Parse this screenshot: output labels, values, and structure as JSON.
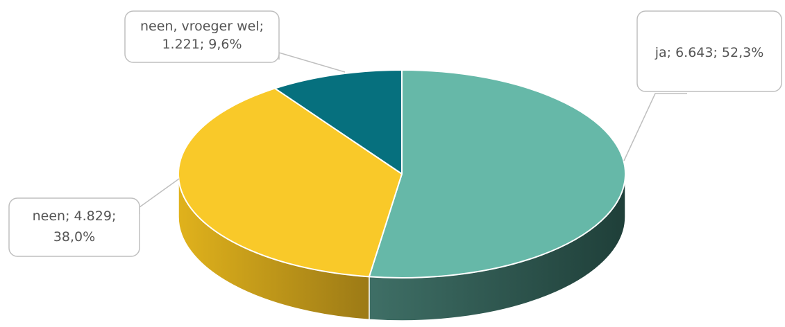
{
  "chart_data": {
    "type": "pie",
    "style": "3d",
    "title": "",
    "slices": [
      {
        "label": "ja",
        "value": 6643,
        "percent": 52.3,
        "color": "#66b8a8",
        "callout_lines": [
          "ja; 6.643; 52,3%"
        ]
      },
      {
        "label": "neen",
        "value": 4829,
        "percent": 38.0,
        "color": "#f9c929",
        "callout_lines": [
          "neen; 4.829;",
          "38,0%"
        ]
      },
      {
        "label": "neen, vroeger wel",
        "value": 1221,
        "percent": 9.6,
        "color": "#06707e",
        "callout_lines": [
          "neen, vroeger wel;",
          "1.221; 9,6%"
        ]
      }
    ],
    "legend": "none"
  }
}
